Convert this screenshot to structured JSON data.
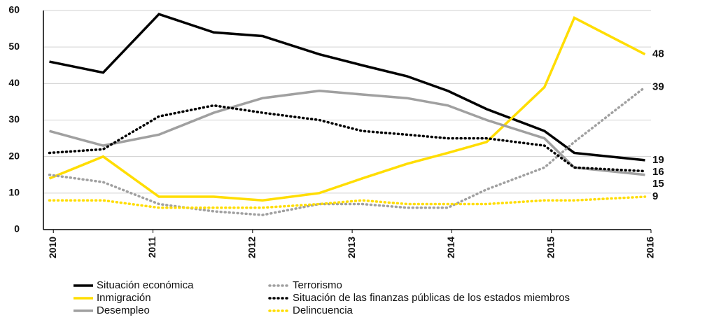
{
  "chart_data": {
    "type": "line",
    "x": [
      2009.96,
      2010.5,
      2011.06,
      2011.61,
      2012.1,
      2012.67,
      2013.1,
      2013.55,
      2013.96,
      2014.35,
      2014.93,
      2015.23,
      2015.94
    ],
    "xlim": [
      2009.9,
      2016.0
    ],
    "xticks": [
      2010,
      2011,
      2012,
      2013,
      2014,
      2015,
      2016
    ],
    "ylim": [
      0,
      60
    ],
    "yticks": [
      0,
      10,
      20,
      30,
      40,
      50,
      60
    ],
    "grid": true,
    "legend": "bottom",
    "series": [
      {
        "name": "Situación económica",
        "color": "#000000",
        "style": "solid",
        "values": [
          46,
          43,
          59,
          54,
          53,
          48,
          45,
          42,
          38,
          33,
          27,
          21,
          19
        ]
      },
      {
        "name": "Inmigración",
        "color": "#ffdd00",
        "style": "solid",
        "values": [
          14,
          20,
          9,
          9,
          8,
          10,
          14,
          18,
          21,
          24,
          39,
          58,
          48
        ]
      },
      {
        "name": "Desempleo",
        "color": "#a0a0a0",
        "style": "solid",
        "values": [
          27,
          23,
          26,
          32,
          36,
          38,
          37,
          36,
          34,
          30,
          25,
          17,
          15
        ]
      },
      {
        "name": "Terrorismo",
        "color": "#a0a0a0",
        "style": "dotted",
        "values": [
          15,
          13,
          7,
          5,
          4,
          7,
          7,
          6,
          6,
          11,
          17,
          24,
          39
        ]
      },
      {
        "name": "Situación de las finanzas públicas de los estados miembros",
        "color": "#000000",
        "style": "dotted",
        "values": [
          21,
          22,
          31,
          34,
          32,
          30,
          27,
          26,
          25,
          25,
          23,
          17,
          16
        ]
      },
      {
        "name": "Delincuencia",
        "color": "#ffdd00",
        "style": "dotted",
        "values": [
          8,
          8,
          6,
          6,
          6,
          7,
          8,
          7,
          7,
          7,
          8,
          8,
          9
        ]
      }
    ]
  }
}
